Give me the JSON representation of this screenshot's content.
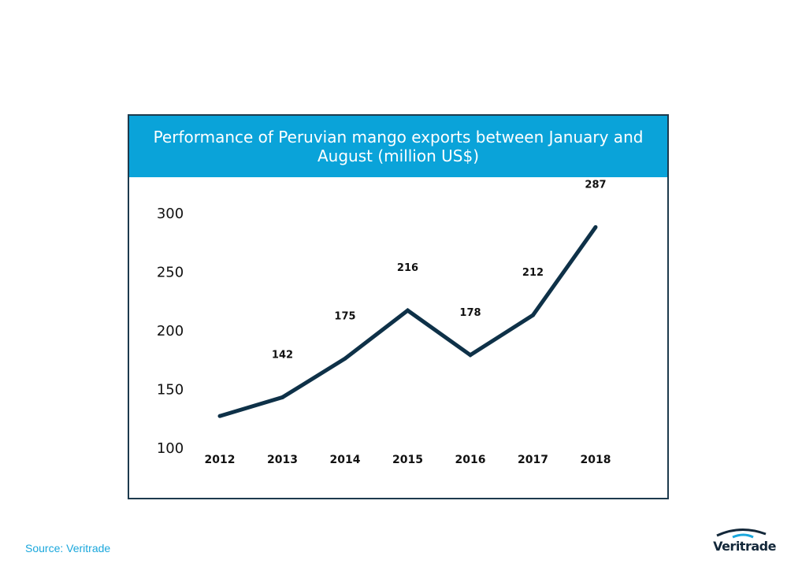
{
  "chart_data": {
    "type": "line",
    "title": "Performance of Peruvian mango exports between January and August (million  US$)",
    "x": [
      "2012",
      "2013",
      "2014",
      "2015",
      "2016",
      "2017",
      "2018"
    ],
    "series": [
      {
        "values": [
          126,
          142,
          175,
          216,
          178,
          212,
          287
        ],
        "data_labels": [
          "",
          "142",
          "175",
          "216",
          "178",
          "212",
          "287"
        ]
      }
    ],
    "y_ticks": [
      100,
      150,
      200,
      250,
      300
    ],
    "ylim": [
      100,
      300
    ],
    "grid": false,
    "line_color": "#0e3148"
  },
  "source": "Source: Veritrade",
  "logo": {
    "text": "Veritrade"
  },
  "colors": {
    "title_bar": "#0aa3d9",
    "frame": "#1d3a4d",
    "source_text": "#1aa7dc"
  }
}
